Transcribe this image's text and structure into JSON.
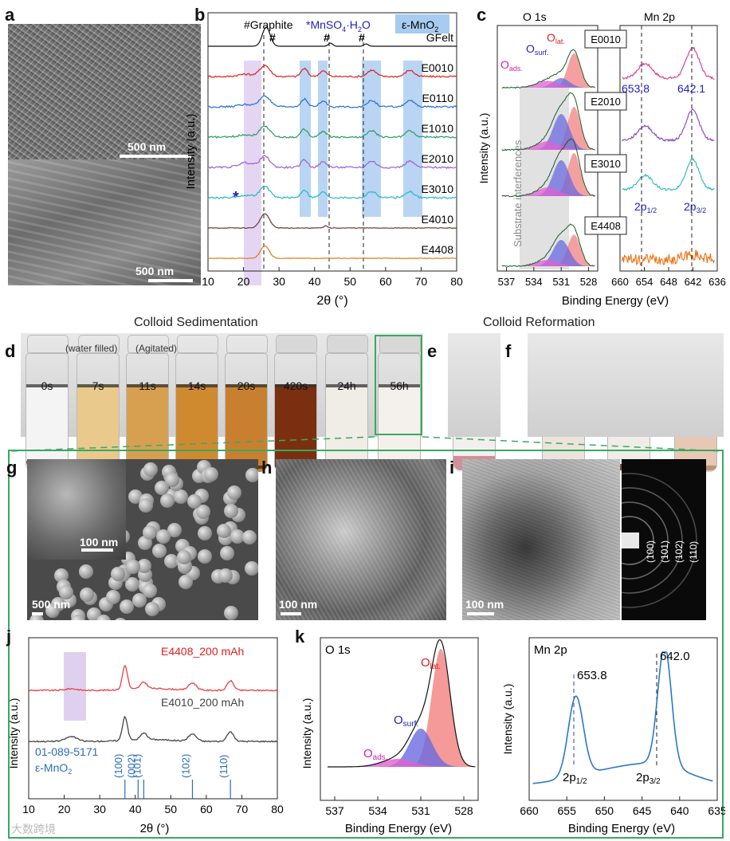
{
  "panels": {
    "a": {
      "label": "a",
      "scale_top": "500 nm",
      "scale_bottom": "500 nm"
    },
    "b": {
      "label": "b",
      "legend": {
        "graphite": "#Graphite",
        "mnso4": "*MnSO",
        "mnso4_sub": "4",
        "mnso4_rest": "·H",
        "mnso4_h2o_sub": "2",
        "mnso4_o": "O",
        "emno2": "ε-MnO",
        "emno2_sub": "2"
      },
      "hash_marks": [
        "#",
        "#",
        "#"
      ],
      "star": "*",
      "samples": [
        "GFelt",
        "E0010",
        "E0110",
        "E1010",
        "E2010",
        "E3010",
        "E4010",
        "E4408"
      ],
      "colors": [
        "#111111",
        "#e02020",
        "#2070d0",
        "#2a9a60",
        "#9a60d0",
        "#20b8c8",
        "#6a3a2a",
        "#e07818"
      ],
      "xlabel": "2θ (°)",
      "ylabel": "Intensity (a.u.)",
      "xticks": [
        "10",
        "20",
        "30",
        "40",
        "50",
        "60",
        "70",
        "80"
      ]
    },
    "c": {
      "label": "c",
      "o1s_title": "O 1s",
      "mn2p_title": "Mn 2p",
      "o_labels": {
        "lat": "O",
        "lat_sub": "lat.",
        "surf": "O",
        "surf_sub": "surf.",
        "ads": "O",
        "ads_sub": "ads."
      },
      "samples": [
        "E0010",
        "E2010",
        "E3010",
        "E4408"
      ],
      "substrate_note": "Substrate interferences",
      "peak_1": "653.8",
      "peak_2": "642.1",
      "p12": "2p",
      "p12_sub": "1/2",
      "p32": "2p",
      "p32_sub": "3/2",
      "ylabel": "Intensity (a.u.)",
      "xlabel": "Binding Energy (eV)",
      "o_ticks": [
        "537",
        "534",
        "531",
        "528"
      ],
      "mn_ticks": [
        "660",
        "654",
        "648",
        "642",
        "636"
      ]
    },
    "d": {
      "label": "d",
      "title": "Colloid Sedimentation",
      "note_water": "(water filled)",
      "note_agitated": "(Agitated)",
      "times": [
        "0s",
        "7s",
        "11s",
        "14s",
        "20s",
        "420s",
        "24h",
        "56h"
      ]
    },
    "e": {
      "label": "e"
    },
    "f": {
      "label": "f",
      "title": "Colloid Reformation"
    },
    "g": {
      "label": "g",
      "scale_inset": "100 nm",
      "scale_main": "500 nm"
    },
    "h": {
      "label": "h",
      "scale": "100 nm"
    },
    "i": {
      "label": "i",
      "scale": "100 nm",
      "rings": [
        "(100)",
        "(101)",
        "(102)",
        "(110)"
      ]
    },
    "j": {
      "label": "j",
      "series_1": "E4408_200 mAh",
      "series_2": "E4010_200 mAh",
      "ref_code": "01-089-5171",
      "ref_phase": "ε-MnO",
      "ref_phase_sub": "2",
      "ref_peaks": [
        "(100)",
        "(002)",
        "(101)",
        "(102)",
        "(110)"
      ],
      "xlabel": "2θ  (°)",
      "ylabel": "Intensity (a.u.)",
      "xticks": [
        "10",
        "20",
        "30",
        "40",
        "50",
        "60",
        "70",
        "80"
      ]
    },
    "k": {
      "label": "k",
      "o1s_title": "O 1s",
      "mn2p_title": "Mn 2p",
      "o_lat": "O",
      "o_lat_sub": "lat.",
      "o_surf": "O",
      "o_surf_sub": "surf.",
      "o_ads": "O",
      "o_ads_sub": "ads.",
      "mn_peak_1": "653.8",
      "mn_peak_2": "642.0",
      "p12": "2p",
      "p12_sub": "1/2",
      "p32": "2p",
      "p32_sub": "3/2",
      "ylabel": "Intensity (a.u.)",
      "xlabel": "Binding Energy (eV)",
      "o_ticks": [
        "537",
        "534",
        "531",
        "528"
      ],
      "mn_ticks": [
        "660",
        "655",
        "650",
        "645",
        "640",
        "635"
      ]
    },
    "watermark": "大数跨境"
  }
}
